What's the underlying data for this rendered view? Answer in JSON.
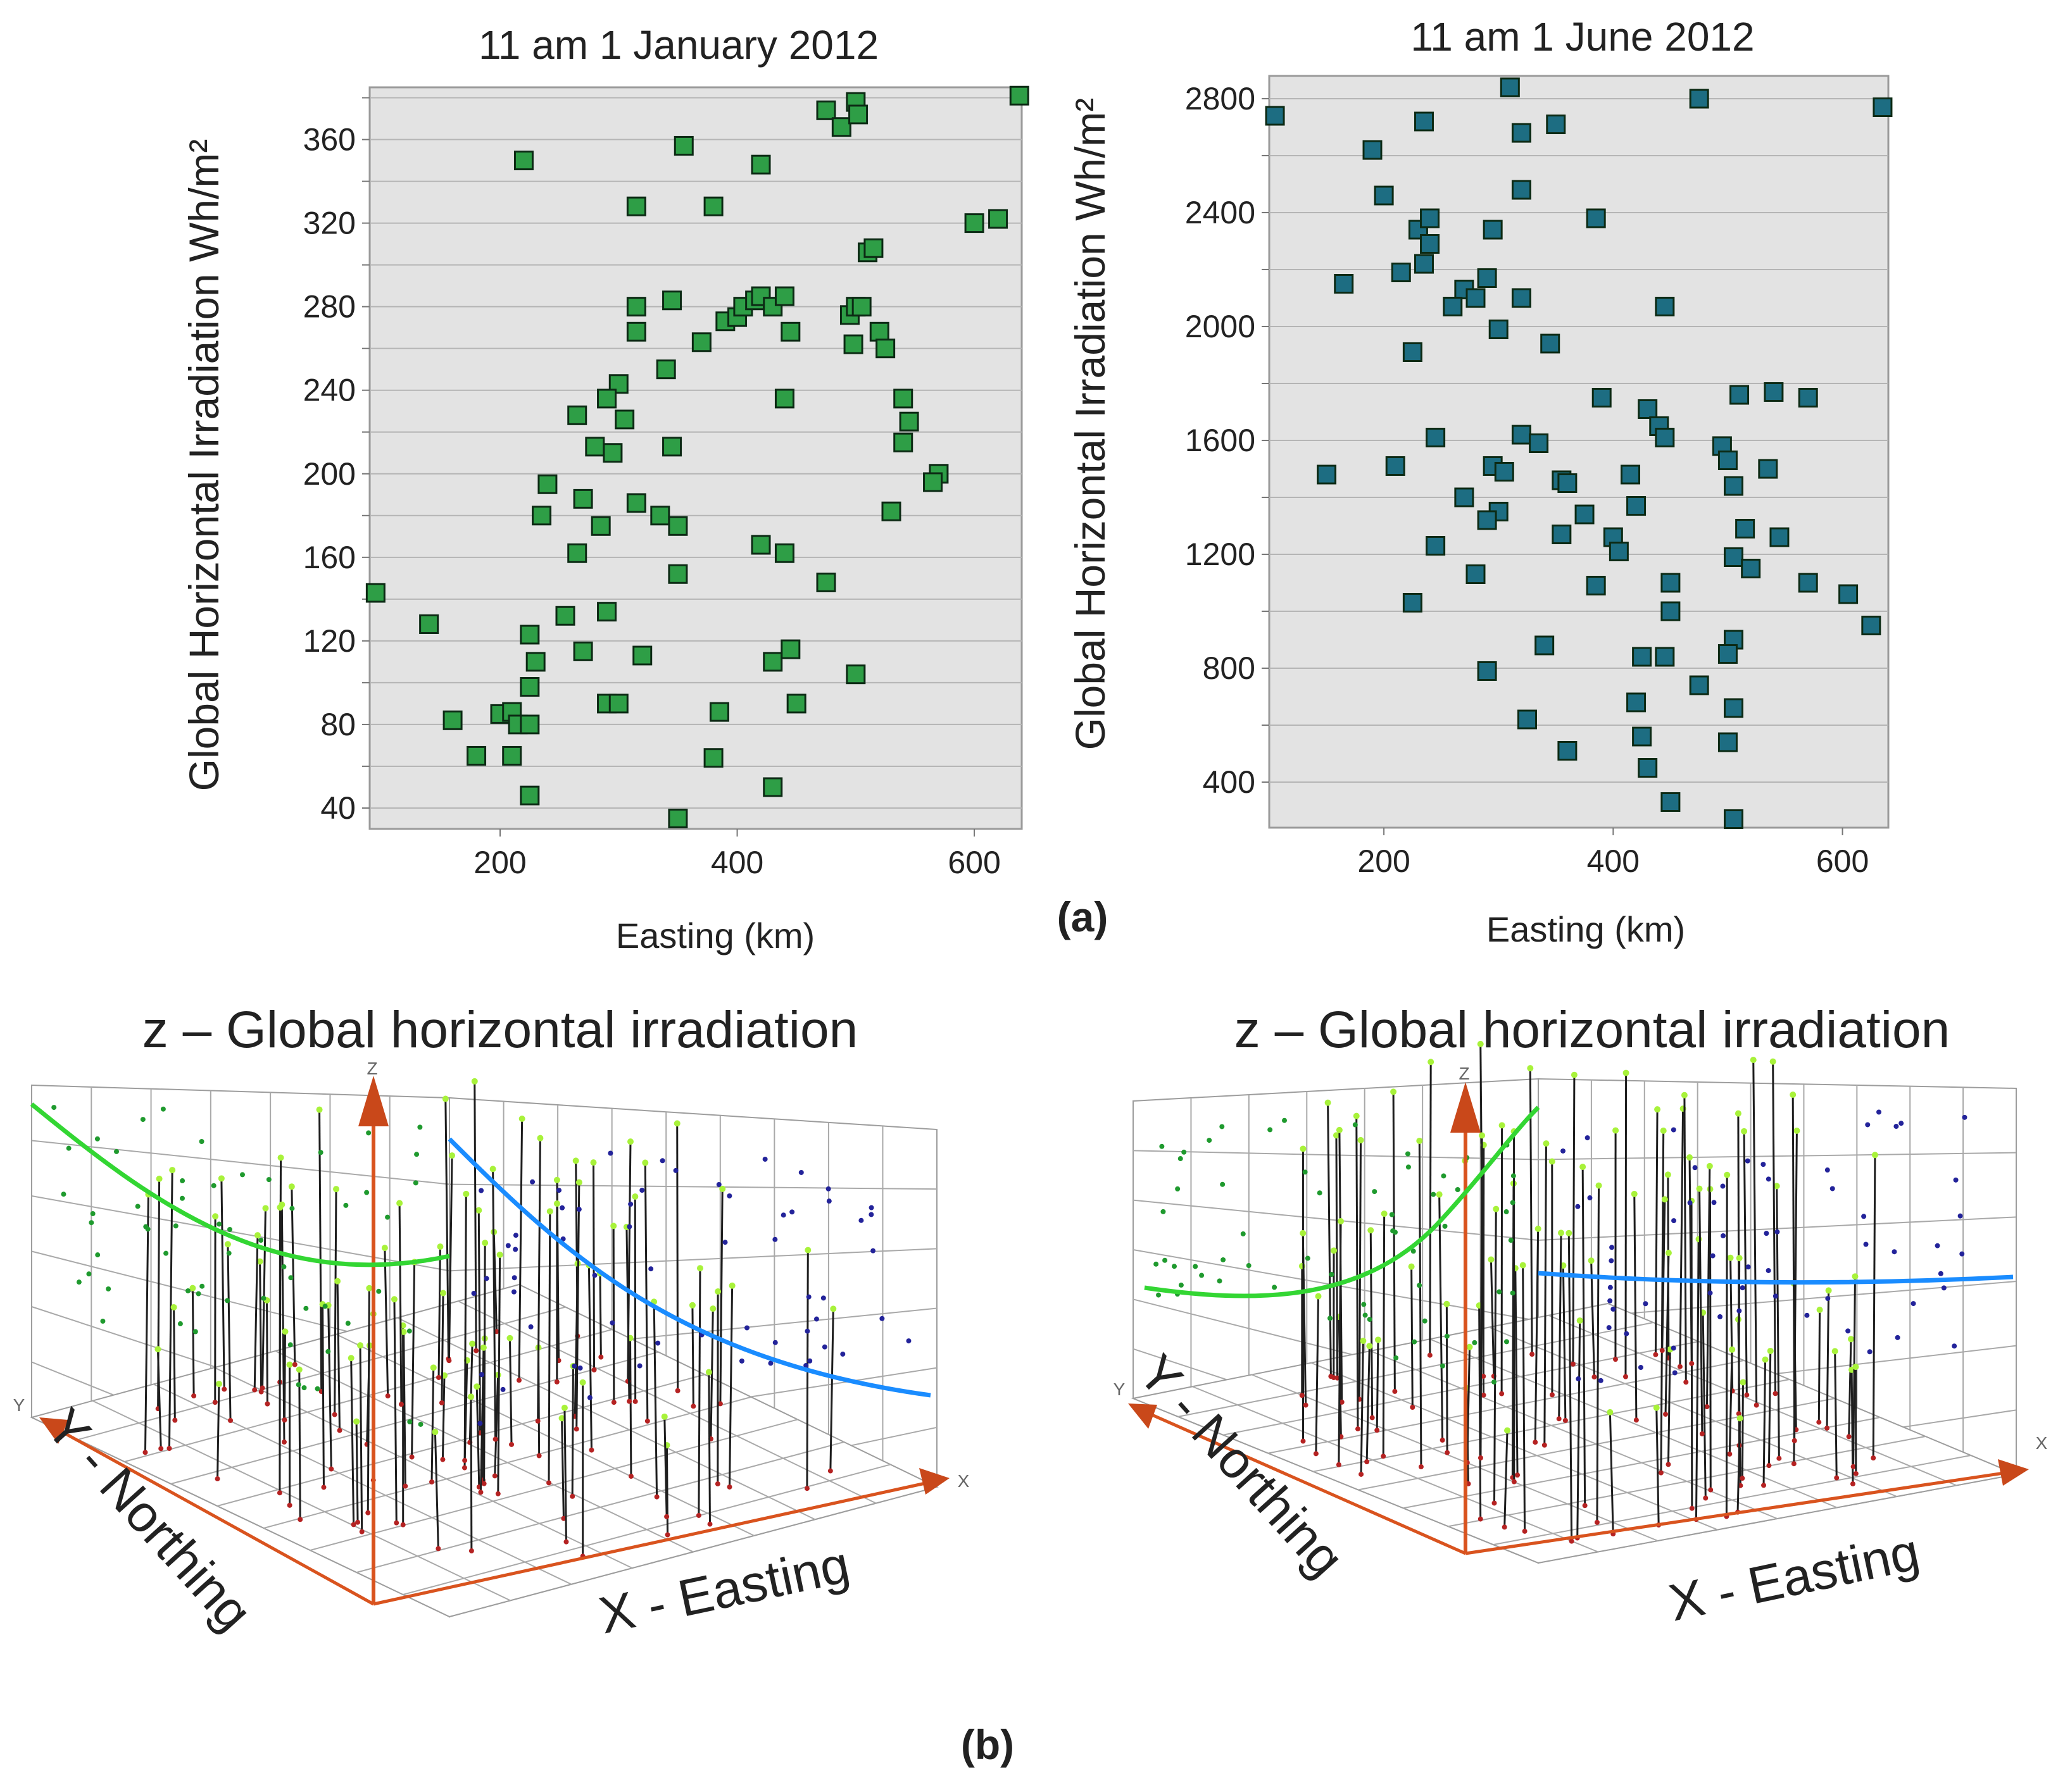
{
  "figure": {
    "panel_a_label": "(a)",
    "panel_b_label": "(b)",
    "colors": {
      "green_marker": "#2e9e46",
      "blue_marker": "#1d6d82",
      "plot_bg": "#e3e3e3",
      "grid": "#b5b5b5",
      "green_curve": "#33d633",
      "blue_curve": "#1a8cff",
      "axis_orange": "#d9531e"
    }
  },
  "chart_data": [
    {
      "type": "scatter",
      "title": "11 am 1 January 2012",
      "xlabel": "Easting (km)",
      "ylabel": "Global Horizontal Irradiation Wh/m²",
      "xlim": [
        90,
        640
      ],
      "ylim": [
        30,
        385
      ],
      "xticks": [
        200,
        400,
        600
      ],
      "yticks": [
        40,
        80,
        120,
        160,
        200,
        240,
        280,
        320,
        360
      ],
      "grid": "horizontal",
      "points": [
        [
          95,
          143
        ],
        [
          220,
          350
        ],
        [
          355,
          357
        ],
        [
          420,
          348
        ],
        [
          475,
          374
        ],
        [
          488,
          366
        ],
        [
          500,
          378
        ],
        [
          502,
          372
        ],
        [
          638,
          381
        ],
        [
          315,
          328
        ],
        [
          380,
          328
        ],
        [
          600,
          320
        ],
        [
          620,
          322
        ],
        [
          510,
          306
        ],
        [
          515,
          308
        ],
        [
          315,
          280
        ],
        [
          345,
          283
        ],
        [
          390,
          273
        ],
        [
          400,
          275
        ],
        [
          405,
          280
        ],
        [
          415,
          283
        ],
        [
          420,
          285
        ],
        [
          430,
          280
        ],
        [
          440,
          285
        ],
        [
          445,
          268
        ],
        [
          495,
          276
        ],
        [
          500,
          280
        ],
        [
          505,
          280
        ],
        [
          520,
          268
        ],
        [
          525,
          260
        ],
        [
          315,
          268
        ],
        [
          370,
          263
        ],
        [
          498,
          262
        ],
        [
          340,
          250
        ],
        [
          300,
          243
        ],
        [
          290,
          236
        ],
        [
          440,
          236
        ],
        [
          540,
          236
        ],
        [
          265,
          228
        ],
        [
          305,
          226
        ],
        [
          545,
          225
        ],
        [
          280,
          213
        ],
        [
          295,
          210
        ],
        [
          345,
          213
        ],
        [
          540,
          215
        ],
        [
          240,
          195
        ],
        [
          570,
          200
        ],
        [
          565,
          196
        ],
        [
          270,
          188
        ],
        [
          315,
          186
        ],
        [
          335,
          180
        ],
        [
          235,
          180
        ],
        [
          285,
          175
        ],
        [
          350,
          175
        ],
        [
          530,
          182
        ],
        [
          265,
          162
        ],
        [
          420,
          166
        ],
        [
          440,
          162
        ],
        [
          475,
          148
        ],
        [
          350,
          152
        ],
        [
          140,
          128
        ],
        [
          255,
          132
        ],
        [
          290,
          134
        ],
        [
          225,
          123
        ],
        [
          270,
          115
        ],
        [
          320,
          113
        ],
        [
          430,
          110
        ],
        [
          445,
          116
        ],
        [
          230,
          110
        ],
        [
          500,
          104
        ],
        [
          225,
          98
        ],
        [
          290,
          90
        ],
        [
          300,
          90
        ],
        [
          385,
          86
        ],
        [
          450,
          90
        ],
        [
          160,
          82
        ],
        [
          200,
          85
        ],
        [
          210,
          86
        ],
        [
          215,
          80
        ],
        [
          225,
          80
        ],
        [
          180,
          65
        ],
        [
          210,
          65
        ],
        [
          380,
          64
        ],
        [
          225,
          46
        ],
        [
          430,
          50
        ],
        [
          350,
          35
        ]
      ]
    },
    {
      "type": "scatter",
      "title": "11 am 1 June 2012",
      "xlabel": "Easting (km)",
      "ylabel": "Global Horizontal Irradiation Wh/m²",
      "xlim": [
        100,
        640
      ],
      "ylim": [
        240,
        2880
      ],
      "xticks": [
        200,
        400,
        600
      ],
      "yticks": [
        400,
        800,
        1200,
        1600,
        2000,
        2400,
        2800
      ],
      "grid": "horizontal",
      "points": [
        [
          105,
          2740
        ],
        [
          310,
          2840
        ],
        [
          475,
          2800
        ],
        [
          635,
          2770
        ],
        [
          235,
          2720
        ],
        [
          320,
          2680
        ],
        [
          350,
          2710
        ],
        [
          190,
          2620
        ],
        [
          320,
          2480
        ],
        [
          200,
          2460
        ],
        [
          230,
          2340
        ],
        [
          240,
          2380
        ],
        [
          240,
          2290
        ],
        [
          295,
          2340
        ],
        [
          385,
          2380
        ],
        [
          235,
          2220
        ],
        [
          215,
          2190
        ],
        [
          165,
          2150
        ],
        [
          270,
          2130
        ],
        [
          280,
          2100
        ],
        [
          260,
          2070
        ],
        [
          290,
          2170
        ],
        [
          320,
          2100
        ],
        [
          445,
          2070
        ],
        [
          300,
          1990
        ],
        [
          345,
          1940
        ],
        [
          225,
          1910
        ],
        [
          390,
          1750
        ],
        [
          430,
          1710
        ],
        [
          440,
          1650
        ],
        [
          445,
          1610
        ],
        [
          510,
          1760
        ],
        [
          540,
          1770
        ],
        [
          570,
          1750
        ],
        [
          245,
          1610
        ],
        [
          320,
          1620
        ],
        [
          335,
          1590
        ],
        [
          210,
          1510
        ],
        [
          150,
          1480
        ],
        [
          295,
          1510
        ],
        [
          305,
          1490
        ],
        [
          355,
          1460
        ],
        [
          360,
          1450
        ],
        [
          415,
          1480
        ],
        [
          495,
          1580
        ],
        [
          500,
          1530
        ],
        [
          535,
          1500
        ],
        [
          505,
          1440
        ],
        [
          270,
          1400
        ],
        [
          300,
          1350
        ],
        [
          290,
          1320
        ],
        [
          375,
          1340
        ],
        [
          420,
          1370
        ],
        [
          355,
          1270
        ],
        [
          400,
          1260
        ],
        [
          515,
          1290
        ],
        [
          545,
          1260
        ],
        [
          245,
          1230
        ],
        [
          405,
          1210
        ],
        [
          505,
          1190
        ],
        [
          520,
          1150
        ],
        [
          280,
          1130
        ],
        [
          385,
          1090
        ],
        [
          450,
          1100
        ],
        [
          570,
          1100
        ],
        [
          605,
          1060
        ],
        [
          225,
          1030
        ],
        [
          450,
          1000
        ],
        [
          625,
          950
        ],
        [
          340,
          880
        ],
        [
          505,
          900
        ],
        [
          425,
          840
        ],
        [
          445,
          840
        ],
        [
          500,
          850
        ],
        [
          290,
          790
        ],
        [
          475,
          740
        ],
        [
          420,
          680
        ],
        [
          505,
          660
        ],
        [
          325,
          620
        ],
        [
          425,
          560
        ],
        [
          360,
          510
        ],
        [
          500,
          540
        ],
        [
          430,
          450
        ],
        [
          450,
          330
        ],
        [
          505,
          270
        ]
      ]
    },
    {
      "type": "scatter3d",
      "title": "z – Global horizontal irradiation",
      "axis_letters": {
        "x": "X",
        "y": "Y",
        "z": "Z"
      },
      "xlabel": "X  - Easting",
      "ylabel": "Y - Northing",
      "curves": [
        "green projection curve (z vs northing)",
        "blue projection curve (z vs easting)"
      ]
    },
    {
      "type": "scatter3d",
      "title": "z – Global horizontal irradiation",
      "axis_letters": {
        "x": "X",
        "y": "Y",
        "z": "Z"
      },
      "xlabel": "X  - Easting",
      "ylabel": "Y - Northing",
      "curves": [
        "green projection curve (z vs northing)",
        "blue projection curve (z vs easting)"
      ]
    }
  ]
}
